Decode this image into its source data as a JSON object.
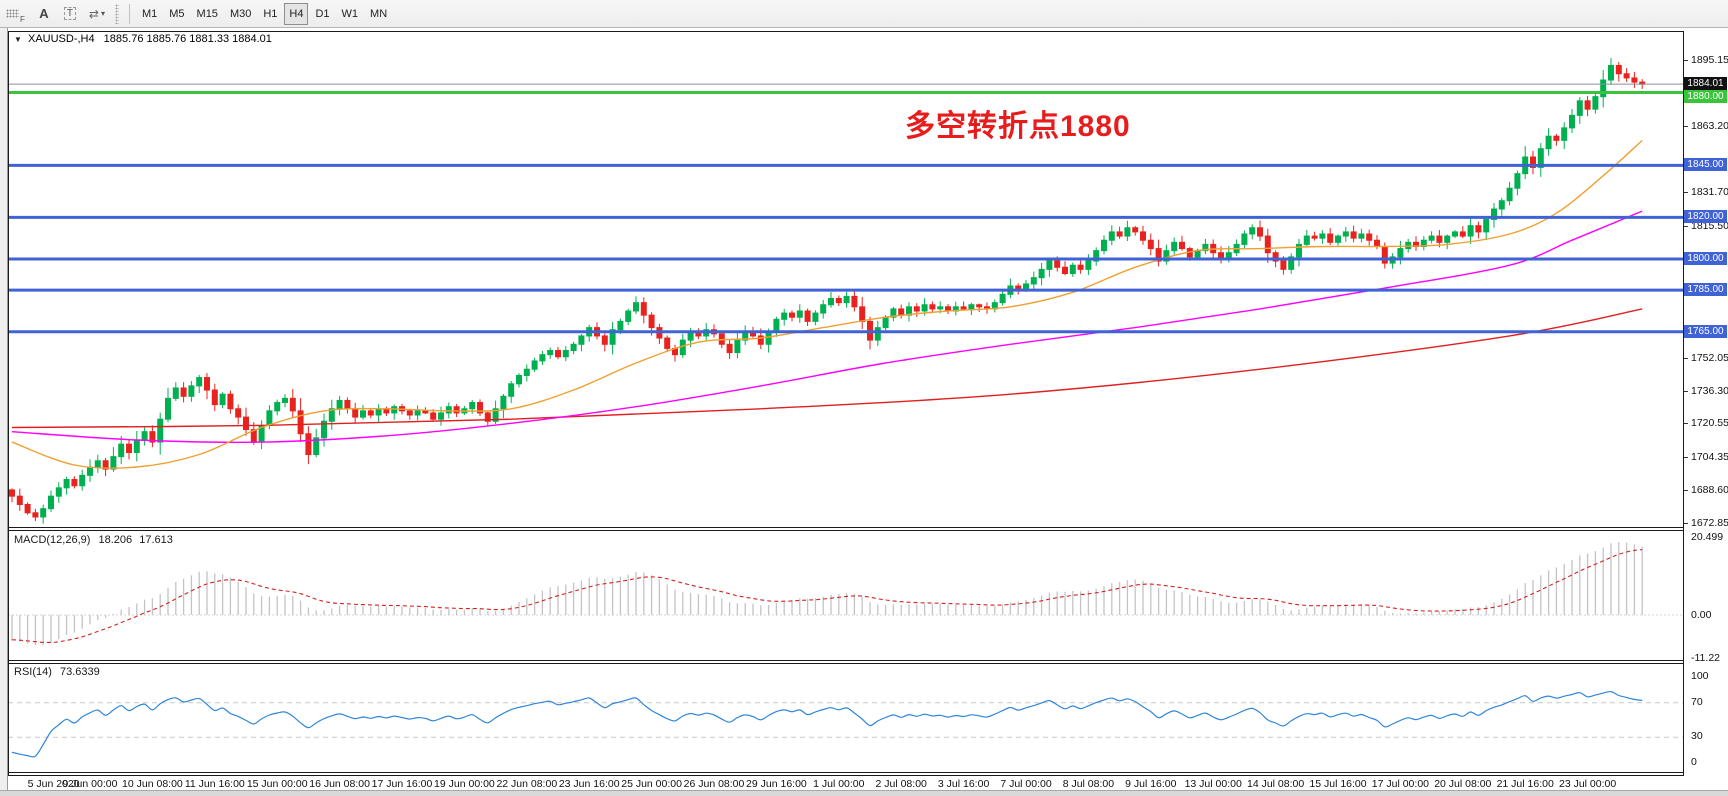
{
  "toolbar": {
    "dock_label": "F",
    "tools": [
      {
        "name": "annotate-letter",
        "label": "A"
      },
      {
        "name": "text-box",
        "label": "T"
      }
    ],
    "cursor_icon": "⇄",
    "caret_icon": "▾",
    "timeframes": [
      {
        "label": "M1",
        "active": false
      },
      {
        "label": "M5",
        "active": false
      },
      {
        "label": "M15",
        "active": false
      },
      {
        "label": "M30",
        "active": false
      },
      {
        "label": "H1",
        "active": false
      },
      {
        "label": "H4",
        "active": true
      },
      {
        "label": "D1",
        "active": false
      },
      {
        "label": "W1",
        "active": false
      },
      {
        "label": "MN",
        "active": false
      }
    ]
  },
  "symbol_panel": {
    "collapse_icon": "▼",
    "title": "XAUUSD-,H4",
    "ohlc": "1885.76 1885.76 1881.33 1884.01"
  },
  "annotation": {
    "text": "多空转折点1880",
    "color": "#e81c1c"
  },
  "indicators": {
    "macd": {
      "name": "MACD(12,26,9)",
      "value_main": "18.206",
      "value_signal": "17.613",
      "axis_labels": [
        "20.499",
        "0.00",
        "-11.22"
      ],
      "axis_values": [
        20.499,
        0,
        -11.22
      ]
    },
    "rsi": {
      "name": "RSI(14)",
      "value": "73.6339",
      "axis_labels": [
        "100",
        "70",
        "30",
        "0"
      ],
      "axis_values": [
        100,
        70,
        30,
        0
      ],
      "levels": [
        70,
        30
      ]
    }
  },
  "price_axis": {
    "ticks": [
      {
        "label": "1895.15",
        "price": 1895.15
      },
      {
        "label": "1863.20",
        "price": 1863.2
      },
      {
        "label": "1831.70",
        "price": 1831.7
      },
      {
        "label": "1815.50",
        "price": 1815.5
      },
      {
        "label": "1752.05",
        "price": 1752.05
      },
      {
        "label": "1736.30",
        "price": 1736.3
      },
      {
        "label": "1720.55",
        "price": 1720.55
      },
      {
        "label": "1704.35",
        "price": 1704.35
      },
      {
        "label": "1688.60",
        "price": 1688.6
      },
      {
        "label": "1672.85",
        "price": 1672.85
      }
    ]
  },
  "chart_data": {
    "type": "candlestick",
    "symbol": "XAUUSD-",
    "timeframe": "H4",
    "title": "XAUUSD-,H4",
    "current_bar_ohlc": {
      "open": 1885.76,
      "high": 1885.76,
      "low": 1881.33,
      "close": 1884.01
    },
    "current_price": {
      "price": 1884.01,
      "label": "1884.01",
      "line_color": "#8a9099",
      "badge_color": "#111111"
    },
    "horizontal_levels": [
      {
        "price": 1880.0,
        "label": "1880.00",
        "color": "#3bc43b",
        "width": 3
      },
      {
        "price": 1845.0,
        "label": "1845.00",
        "color": "#3f62d6",
        "width": 3
      },
      {
        "price": 1820.0,
        "label": "1820.00",
        "color": "#3f62d6",
        "width": 3
      },
      {
        "price": 1800.0,
        "label": "1800.00",
        "color": "#3f62d6",
        "width": 3
      },
      {
        "price": 1785.0,
        "label": "1785.00",
        "color": "#3f62d6",
        "width": 3
      },
      {
        "price": 1765.0,
        "label": "1765.00",
        "color": "#3f62d6",
        "width": 3
      }
    ],
    "price_range_visible": [
      1672.85,
      1895.15
    ],
    "closes": [
      1686,
      1682,
      1678,
      1676,
      1680,
      1686,
      1690,
      1694,
      1691,
      1696,
      1700,
      1703,
      1699,
      1705,
      1711,
      1707,
      1713,
      1717,
      1712,
      1723,
      1733,
      1738,
      1734,
      1739,
      1743,
      1737,
      1730,
      1735,
      1728,
      1724,
      1718,
      1712,
      1720,
      1727,
      1731,
      1733,
      1727,
      1716,
      1706,
      1714,
      1722,
      1728,
      1732,
      1728,
      1724,
      1727,
      1725,
      1728,
      1726,
      1729,
      1727,
      1725,
      1727,
      1726,
      1723,
      1726,
      1729,
      1726,
      1728,
      1731,
      1726,
      1722,
      1728,
      1734,
      1740,
      1744,
      1747,
      1751,
      1754,
      1756,
      1753,
      1756,
      1759,
      1763,
      1767,
      1763,
      1759,
      1766,
      1770,
      1775,
      1779,
      1773,
      1767,
      1762,
      1757,
      1754,
      1761,
      1765,
      1763,
      1766,
      1764,
      1759,
      1755,
      1761,
      1765,
      1763,
      1759,
      1765,
      1771,
      1774,
      1772,
      1775,
      1770,
      1774,
      1778,
      1781,
      1779,
      1782,
      1777,
      1770,
      1761,
      1767,
      1772,
      1776,
      1773,
      1777,
      1775,
      1778,
      1776,
      1777,
      1775,
      1777,
      1776,
      1778,
      1777,
      1776,
      1779,
      1783,
      1787,
      1785,
      1788,
      1791,
      1795,
      1799,
      1796,
      1793,
      1797,
      1795,
      1799,
      1804,
      1809,
      1813,
      1811,
      1815,
      1813,
      1809,
      1805,
      1799,
      1804,
      1808,
      1805,
      1801,
      1804,
      1807,
      1803,
      1800,
      1803,
      1807,
      1812,
      1815,
      1811,
      1803,
      1799,
      1795,
      1801,
      1807,
      1811,
      1810,
      1812,
      1808,
      1811,
      1813,
      1810,
      1812,
      1809,
      1806,
      1798,
      1801,
      1805,
      1808,
      1806,
      1809,
      1811,
      1808,
      1811,
      1813,
      1811,
      1816,
      1813,
      1819,
      1824,
      1828,
      1834,
      1841,
      1849,
      1844,
      1853,
      1859,
      1857,
      1863,
      1869,
      1876,
      1872,
      1878,
      1886,
      1893,
      1889,
      1887,
      1885,
      1884.01
    ],
    "ma_lines": {
      "orange": [
        [
          0,
          1712
        ],
        [
          8,
          1701
        ],
        [
          16,
          1700
        ],
        [
          24,
          1706
        ],
        [
          32,
          1719
        ],
        [
          40,
          1727
        ],
        [
          48,
          1728
        ],
        [
          56,
          1727
        ],
        [
          64,
          1728
        ],
        [
          72,
          1737
        ],
        [
          80,
          1750
        ],
        [
          88,
          1760
        ],
        [
          96,
          1762
        ],
        [
          104,
          1767
        ],
        [
          112,
          1772
        ],
        [
          120,
          1775
        ],
        [
          128,
          1777
        ],
        [
          136,
          1784
        ],
        [
          144,
          1796
        ],
        [
          152,
          1804
        ],
        [
          160,
          1805
        ],
        [
          168,
          1806
        ],
        [
          176,
          1806
        ],
        [
          184,
          1807
        ],
        [
          192,
          1812
        ],
        [
          198,
          1822
        ],
        [
          204,
          1840
        ],
        [
          209,
          1857
        ]
      ],
      "magenta": [
        [
          0,
          1717
        ],
        [
          16,
          1713
        ],
        [
          32,
          1712
        ],
        [
          48,
          1715
        ],
        [
          64,
          1721
        ],
        [
          80,
          1729
        ],
        [
          96,
          1739
        ],
        [
          112,
          1750
        ],
        [
          128,
          1759
        ],
        [
          144,
          1767
        ],
        [
          160,
          1776
        ],
        [
          176,
          1786
        ],
        [
          192,
          1797
        ],
        [
          200,
          1809
        ],
        [
          209,
          1823
        ]
      ],
      "red": [
        [
          0,
          1719
        ],
        [
          32,
          1720
        ],
        [
          64,
          1723
        ],
        [
          96,
          1728
        ],
        [
          128,
          1735
        ],
        [
          160,
          1747
        ],
        [
          192,
          1763
        ],
        [
          209,
          1776
        ]
      ]
    },
    "ma_colors": {
      "orange": "#f0a030",
      "magenta": "#ff00ff",
      "red": "#e02020"
    },
    "candle_colors": {
      "up": "#00b050",
      "down": "#e8231f"
    },
    "x_labels": [
      "5 Jun 2020",
      "9 Jun 00:00",
      "10 Jun 08:00",
      "11 Jun 16:00",
      "15 Jun 00:00",
      "16 Jun 08:00",
      "17 Jun 16:00",
      "19 Jun 00:00",
      "22 Jun 08:00",
      "23 Jun 16:00",
      "25 Jun 00:00",
      "26 Jun 08:00",
      "29 Jun 16:00",
      "1 Jul 00:00",
      "2 Jul 08:00",
      "3 Jul 16:00",
      "7 Jul 00:00",
      "8 Jul 08:00",
      "9 Jul 16:00",
      "13 Jul 00:00",
      "14 Jul 08:00",
      "15 Jul 16:00",
      "17 Jul 00:00",
      "20 Jul 08:00",
      "21 Jul 16:00",
      "23 Jul 00:00"
    ],
    "x_label_start_bar": 2,
    "x_label_step": 8
  }
}
